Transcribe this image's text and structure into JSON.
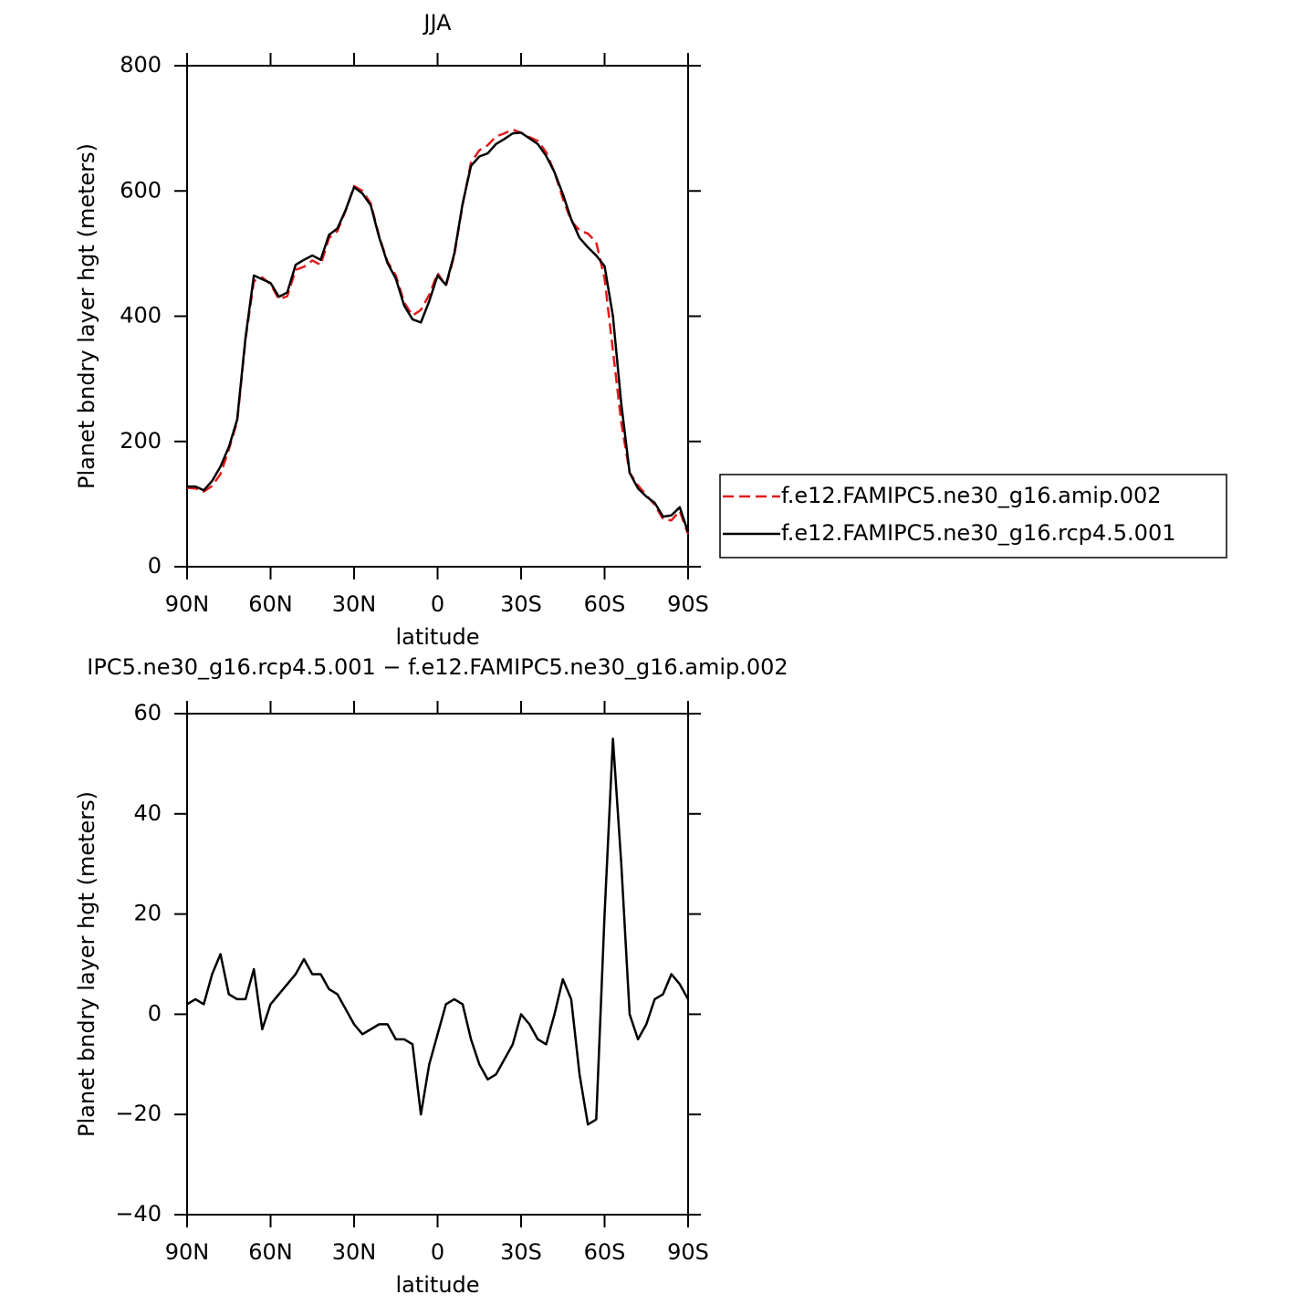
{
  "chart_data": [
    {
      "type": "line",
      "title": "JJA",
      "xlabel": "latitude",
      "ylabel": "Planet bndry layer hgt (meters)",
      "x": [
        90,
        87,
        84,
        81,
        78,
        75,
        72,
        69,
        66,
        63,
        60,
        57,
        54,
        51,
        48,
        45,
        42,
        39,
        36,
        33,
        30,
        27,
        24,
        21,
        18,
        15,
        12,
        9,
        6,
        3,
        0,
        -3,
        -6,
        -9,
        -12,
        -15,
        -18,
        -21,
        -24,
        -27,
        -30,
        -33,
        -36,
        -39,
        -42,
        -45,
        -48,
        -51,
        -54,
        -57,
        -60,
        -63,
        -66,
        -69,
        -72,
        -75,
        -78,
        -81,
        -84,
        -87,
        -90
      ],
      "series": [
        {
          "name": "f.e12.FAMIPC5.ne30_g16.amip.002",
          "color": "#e31a1c",
          "dash": true,
          "values": [
            126,
            125,
            120,
            129,
            148,
            187,
            232,
            363,
            456,
            462,
            451,
            427,
            432,
            474,
            479,
            489,
            482,
            525,
            536,
            569,
            608,
            600,
            580,
            528,
            487,
            465,
            422,
            401,
            410,
            434,
            469,
            448,
            497,
            578,
            645,
            665,
            673,
            687,
            692,
            698,
            693,
            686,
            680,
            662,
            630,
            588,
            552,
            537,
            532,
            518,
            460,
            345,
            230,
            150,
            130,
            114,
            99,
            76,
            74,
            89,
            52
          ]
        },
        {
          "name": "f.e12.FAMIPC5.ne30_g16.rcp4.5.001",
          "color": "#000000",
          "dash": false,
          "values": [
            128,
            128,
            122,
            137,
            160,
            191,
            235,
            366,
            465,
            459,
            453,
            431,
            438,
            482,
            490,
            497,
            490,
            530,
            540,
            570,
            606,
            596,
            577,
            526,
            485,
            460,
            417,
            395,
            390,
            424,
            465,
            450,
            500,
            580,
            640,
            655,
            660,
            675,
            683,
            692,
            693,
            684,
            675,
            656,
            630,
            595,
            555,
            525,
            510,
            497,
            480,
            400,
            260,
            150,
            125,
            112,
            102,
            80,
            82,
            95,
            55
          ]
        }
      ],
      "xlim": [
        90,
        -90
      ],
      "ylim": [
        0,
        800
      ],
      "xticks": [
        {
          "value": 90,
          "label": "90N"
        },
        {
          "value": 60,
          "label": "60N"
        },
        {
          "value": 30,
          "label": "30N"
        },
        0,
        {
          "value": -30,
          "label": "30S"
        },
        {
          "value": -60,
          "label": "60S"
        },
        {
          "value": -90,
          "label": "90S"
        }
      ],
      "yticks": [
        0,
        200,
        400,
        600,
        800
      ],
      "legend": "right"
    },
    {
      "type": "line",
      "title": "IPC5.ne30_g16.rcp4.5.001 − f.e12.FAMIPC5.ne30_g16.amip.002",
      "xlabel": "latitude",
      "ylabel": "Planet bndry layer hgt (meters)",
      "x": [
        90,
        87,
        84,
        81,
        78,
        75,
        72,
        69,
        66,
        63,
        60,
        57,
        54,
        51,
        48,
        45,
        42,
        39,
        36,
        33,
        30,
        27,
        24,
        21,
        18,
        15,
        12,
        9,
        6,
        3,
        0,
        -3,
        -6,
        -9,
        -12,
        -15,
        -18,
        -21,
        -24,
        -27,
        -30,
        -33,
        -36,
        -39,
        -42,
        -45,
        -48,
        -51,
        -54,
        -57,
        -60,
        -63,
        -66,
        -69,
        -72,
        -75,
        -78,
        -81,
        -84,
        -87,
        -90
      ],
      "series": [
        {
          "color": "#000000",
          "dash": false,
          "values": [
            2,
            3,
            2,
            8,
            12,
            4,
            3,
            3,
            9,
            -3,
            2,
            4,
            6,
            8,
            11,
            8,
            8,
            5,
            4,
            1,
            -2,
            -4,
            -3,
            -2,
            -2,
            -5,
            -5,
            -6,
            -20,
            -10,
            -4,
            2,
            3,
            2,
            -5,
            -10,
            -13,
            -12,
            -9,
            -6,
            0,
            -2,
            -5,
            -6,
            0,
            7,
            3,
            -12,
            -22,
            -21,
            20,
            55,
            30,
            0,
            -5,
            -2,
            3,
            4,
            8,
            6,
            3
          ]
        }
      ],
      "xlim": [
        90,
        -90
      ],
      "ylim": [
        -40,
        60
      ],
      "xticks": [
        {
          "value": 90,
          "label": "90N"
        },
        {
          "value": 60,
          "label": "60N"
        },
        {
          "value": 30,
          "label": "30N"
        },
        0,
        {
          "value": -30,
          "label": "30S"
        },
        {
          "value": -60,
          "label": "60S"
        },
        {
          "value": -90,
          "label": "90S"
        }
      ],
      "yticks": [
        {
          "value": -40,
          "label": "−40"
        },
        {
          "value": -20,
          "label": "−20"
        },
        0,
        20,
        40,
        60
      ]
    }
  ]
}
